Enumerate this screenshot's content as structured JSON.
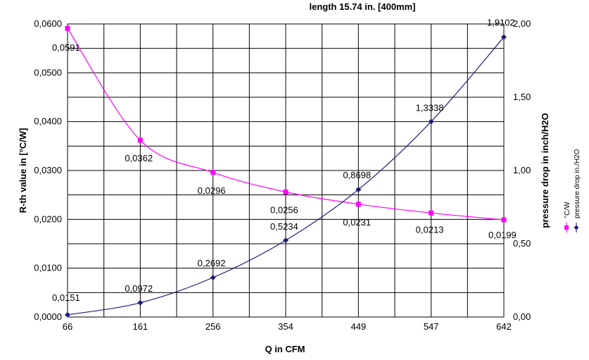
{
  "chart_data": {
    "type": "line",
    "title": "length 15.74 in. [400mm]",
    "xlabel": "Q in CFM",
    "categories": [
      "66",
      "161",
      "256",
      "354",
      "449",
      "547",
      "642"
    ],
    "y_left": {
      "label": "R-th value in [°C/W]",
      "ylim": [
        0,
        0.06
      ],
      "ticks": [
        "0,0000",
        "0,0100",
        "0,0200",
        "0,0300",
        "0,0400",
        "0,0500",
        "0,0600"
      ]
    },
    "y_right": {
      "label": "pressure drop in inch/H2O",
      "ylim": [
        0,
        2.0
      ],
      "ticks": [
        "0,00",
        "0,50",
        "1,00",
        "1,50",
        "2,00"
      ]
    },
    "grid": true,
    "legend_position": "right",
    "series": [
      {
        "name": "°C/W",
        "axis": "left",
        "color": "#ff00ff",
        "marker": "square",
        "values": [
          0.0591,
          0.0362,
          0.0296,
          0.0256,
          0.0231,
          0.0213,
          0.0199
        ],
        "labels": [
          "0,0591",
          "0,0362",
          "0,0296",
          "0,0256",
          "0,0231",
          "0,0213",
          "0,0199"
        ]
      },
      {
        "name": "pressure drop in./H2O",
        "axis": "right",
        "color": "#1f1f7a",
        "marker": "diamond",
        "values": [
          0.0151,
          0.0972,
          0.2692,
          0.5234,
          0.8698,
          1.3338,
          1.9102
        ],
        "labels": [
          "0,0151",
          "0,0972",
          "0,2692",
          "0,5234",
          "0,8698",
          "1,3338",
          "1,9102"
        ]
      }
    ]
  }
}
